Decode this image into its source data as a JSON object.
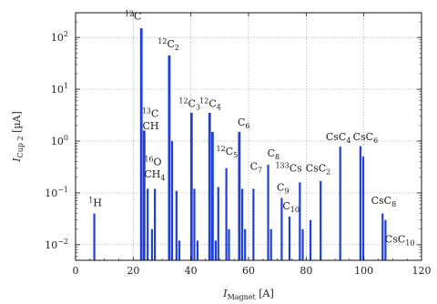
{
  "chart_data": {
    "type": "line",
    "xlabel": "I_Magnet [A]",
    "ylabel": "I_Cup 2 [µA]",
    "xlabel_parts": {
      "main": "I",
      "sub": "Magnet",
      "unit": " [A]"
    },
    "ylabel_parts": {
      "main": "I",
      "sub": "Cup 2",
      "unit": " [µA]"
    },
    "xlim": [
      0,
      120
    ],
    "ylim": [
      0.005,
      300
    ],
    "yscale": "log",
    "grid": true,
    "line_color": "#1f3fd6",
    "x_ticks": [
      {
        "value": 0,
        "label": "0"
      },
      {
        "value": 20,
        "label": "20"
      },
      {
        "value": 40,
        "label": "40"
      },
      {
        "value": 60,
        "label": "60"
      },
      {
        "value": 80,
        "label": "80"
      },
      {
        "value": 100,
        "label": "100"
      },
      {
        "value": 120,
        "label": "120"
      }
    ],
    "y_ticks": [
      {
        "value": 0.01,
        "base": "10",
        "exp": "−2"
      },
      {
        "value": 0.1,
        "base": "10",
        "exp": "−1"
      },
      {
        "value": 1,
        "base": "10",
        "exp": "0"
      },
      {
        "value": 10,
        "base": "10",
        "exp": "1"
      },
      {
        "value": 100,
        "base": "10",
        "exp": "2"
      }
    ],
    "peaks": [
      {
        "x": 6.5,
        "y": 0.04
      },
      {
        "x": 22.8,
        "y": 150
      },
      {
        "x": 23.8,
        "y": 1.6
      },
      {
        "x": 25.0,
        "y": 0.12
      },
      {
        "x": 26.5,
        "y": 0.02
      },
      {
        "x": 27.5,
        "y": 0.12
      },
      {
        "x": 32.5,
        "y": 45
      },
      {
        "x": 33.5,
        "y": 1.0
      },
      {
        "x": 35.0,
        "y": 0.11
      },
      {
        "x": 36.0,
        "y": 0.012
      },
      {
        "x": 40.2,
        "y": 3.5
      },
      {
        "x": 41.2,
        "y": 0.12
      },
      {
        "x": 42.3,
        "y": 0.012
      },
      {
        "x": 46.5,
        "y": 3.5
      },
      {
        "x": 47.5,
        "y": 1.5
      },
      {
        "x": 48.6,
        "y": 0.012
      },
      {
        "x": 49.5,
        "y": 0.13
      },
      {
        "x": 52.3,
        "y": 0.3
      },
      {
        "x": 53.2,
        "y": 0.02
      },
      {
        "x": 56.8,
        "y": 1.5
      },
      {
        "x": 57.8,
        "y": 0.12
      },
      {
        "x": 58.8,
        "y": 0.02
      },
      {
        "x": 61.7,
        "y": 0.12
      },
      {
        "x": 66.8,
        "y": 0.35
      },
      {
        "x": 67.8,
        "y": 0.02
      },
      {
        "x": 71.5,
        "y": 0.08
      },
      {
        "x": 74.2,
        "y": 0.035
      },
      {
        "x": 77.8,
        "y": 0.16
      },
      {
        "x": 78.8,
        "y": 0.02
      },
      {
        "x": 81.5,
        "y": 0.03
      },
      {
        "x": 85.0,
        "y": 0.17
      },
      {
        "x": 91.8,
        "y": 0.78
      },
      {
        "x": 98.8,
        "y": 0.8
      },
      {
        "x": 99.8,
        "y": 0.5
      },
      {
        "x": 106.5,
        "y": 0.04
      },
      {
        "x": 107.5,
        "y": 0.03
      }
    ],
    "annotations": [
      {
        "iso": "1",
        "pre": "",
        "text": "H",
        "sub": "",
        "post": "",
        "x": 4.5,
        "y": 0.055
      },
      {
        "iso": "12",
        "pre": "",
        "text": "C",
        "sub": "",
        "post": "",
        "x": 17.0,
        "y": 220
      },
      {
        "iso": "12",
        "pre": "",
        "text": "C",
        "sub": "2",
        "post": "",
        "x": 28.5,
        "y": 65
      },
      {
        "iso": "13",
        "pre": "",
        "text": "C",
        "sub": "",
        "post": "",
        "x": 23.0,
        "y": 2.9
      },
      {
        "iso": "",
        "pre": "",
        "text": "CH",
        "sub": "",
        "post": "",
        "x": 23.2,
        "y": 1.7
      },
      {
        "iso": "16",
        "pre": "",
        "text": "O",
        "sub": "",
        "post": "",
        "x": 23.8,
        "y": 0.34
      },
      {
        "iso": "",
        "pre": "",
        "text": "CH",
        "sub": "4",
        "post": "",
        "x": 23.8,
        "y": 0.2
      },
      {
        "iso": "12",
        "pre": "",
        "text": "C",
        "sub": "3",
        "post": "",
        "x": 35.8,
        "y": 4.6
      },
      {
        "iso": "12",
        "pre": "",
        "text": "C",
        "sub": "4",
        "post": "",
        "x": 43.0,
        "y": 4.6
      },
      {
        "iso": "",
        "pre": "",
        "text": "C",
        "sub": "6",
        "post": "",
        "x": 56.2,
        "y": 2.0
      },
      {
        "iso": "12",
        "pre": "",
        "text": "C",
        "sub": "5",
        "post": "",
        "x": 48.8,
        "y": 0.55
      },
      {
        "iso": "",
        "pre": "",
        "text": "C",
        "sub": "7",
        "post": "",
        "x": 60.5,
        "y": 0.28
      },
      {
        "iso": "",
        "pre": "",
        "text": "C",
        "sub": "8",
        "post": "",
        "x": 66.5,
        "y": 0.5
      },
      {
        "iso": "133",
        "pre": "",
        "text": "Cs",
        "sub": "",
        "post": "",
        "x": 69.3,
        "y": 0.26
      },
      {
        "iso": "",
        "pre": "",
        "text": "CsC",
        "sub": "2",
        "post": "",
        "x": 79.8,
        "y": 0.26
      },
      {
        "iso": "",
        "pre": "",
        "text": "C",
        "sub": "9",
        "post": "",
        "x": 69.8,
        "y": 0.11
      },
      {
        "iso": "",
        "pre": "",
        "text": "C",
        "sub": "10",
        "post": "",
        "x": 71.8,
        "y": 0.048
      },
      {
        "iso": "",
        "pre": "",
        "text": "CsC",
        "sub": "4",
        "post": "",
        "x": 86.8,
        "y": 1.05
      },
      {
        "iso": "",
        "pre": "",
        "text": "CsC",
        "sub": "6",
        "post": "",
        "x": 96.2,
        "y": 1.05
      },
      {
        "iso": "",
        "pre": "",
        "text": "CsC",
        "sub": "8",
        "post": "",
        "x": 102.5,
        "y": 0.062
      },
      {
        "iso": "",
        "pre": "",
        "text": "CsC",
        "sub": "10",
        "post": "",
        "x": 107.3,
        "y": 0.011
      }
    ]
  }
}
